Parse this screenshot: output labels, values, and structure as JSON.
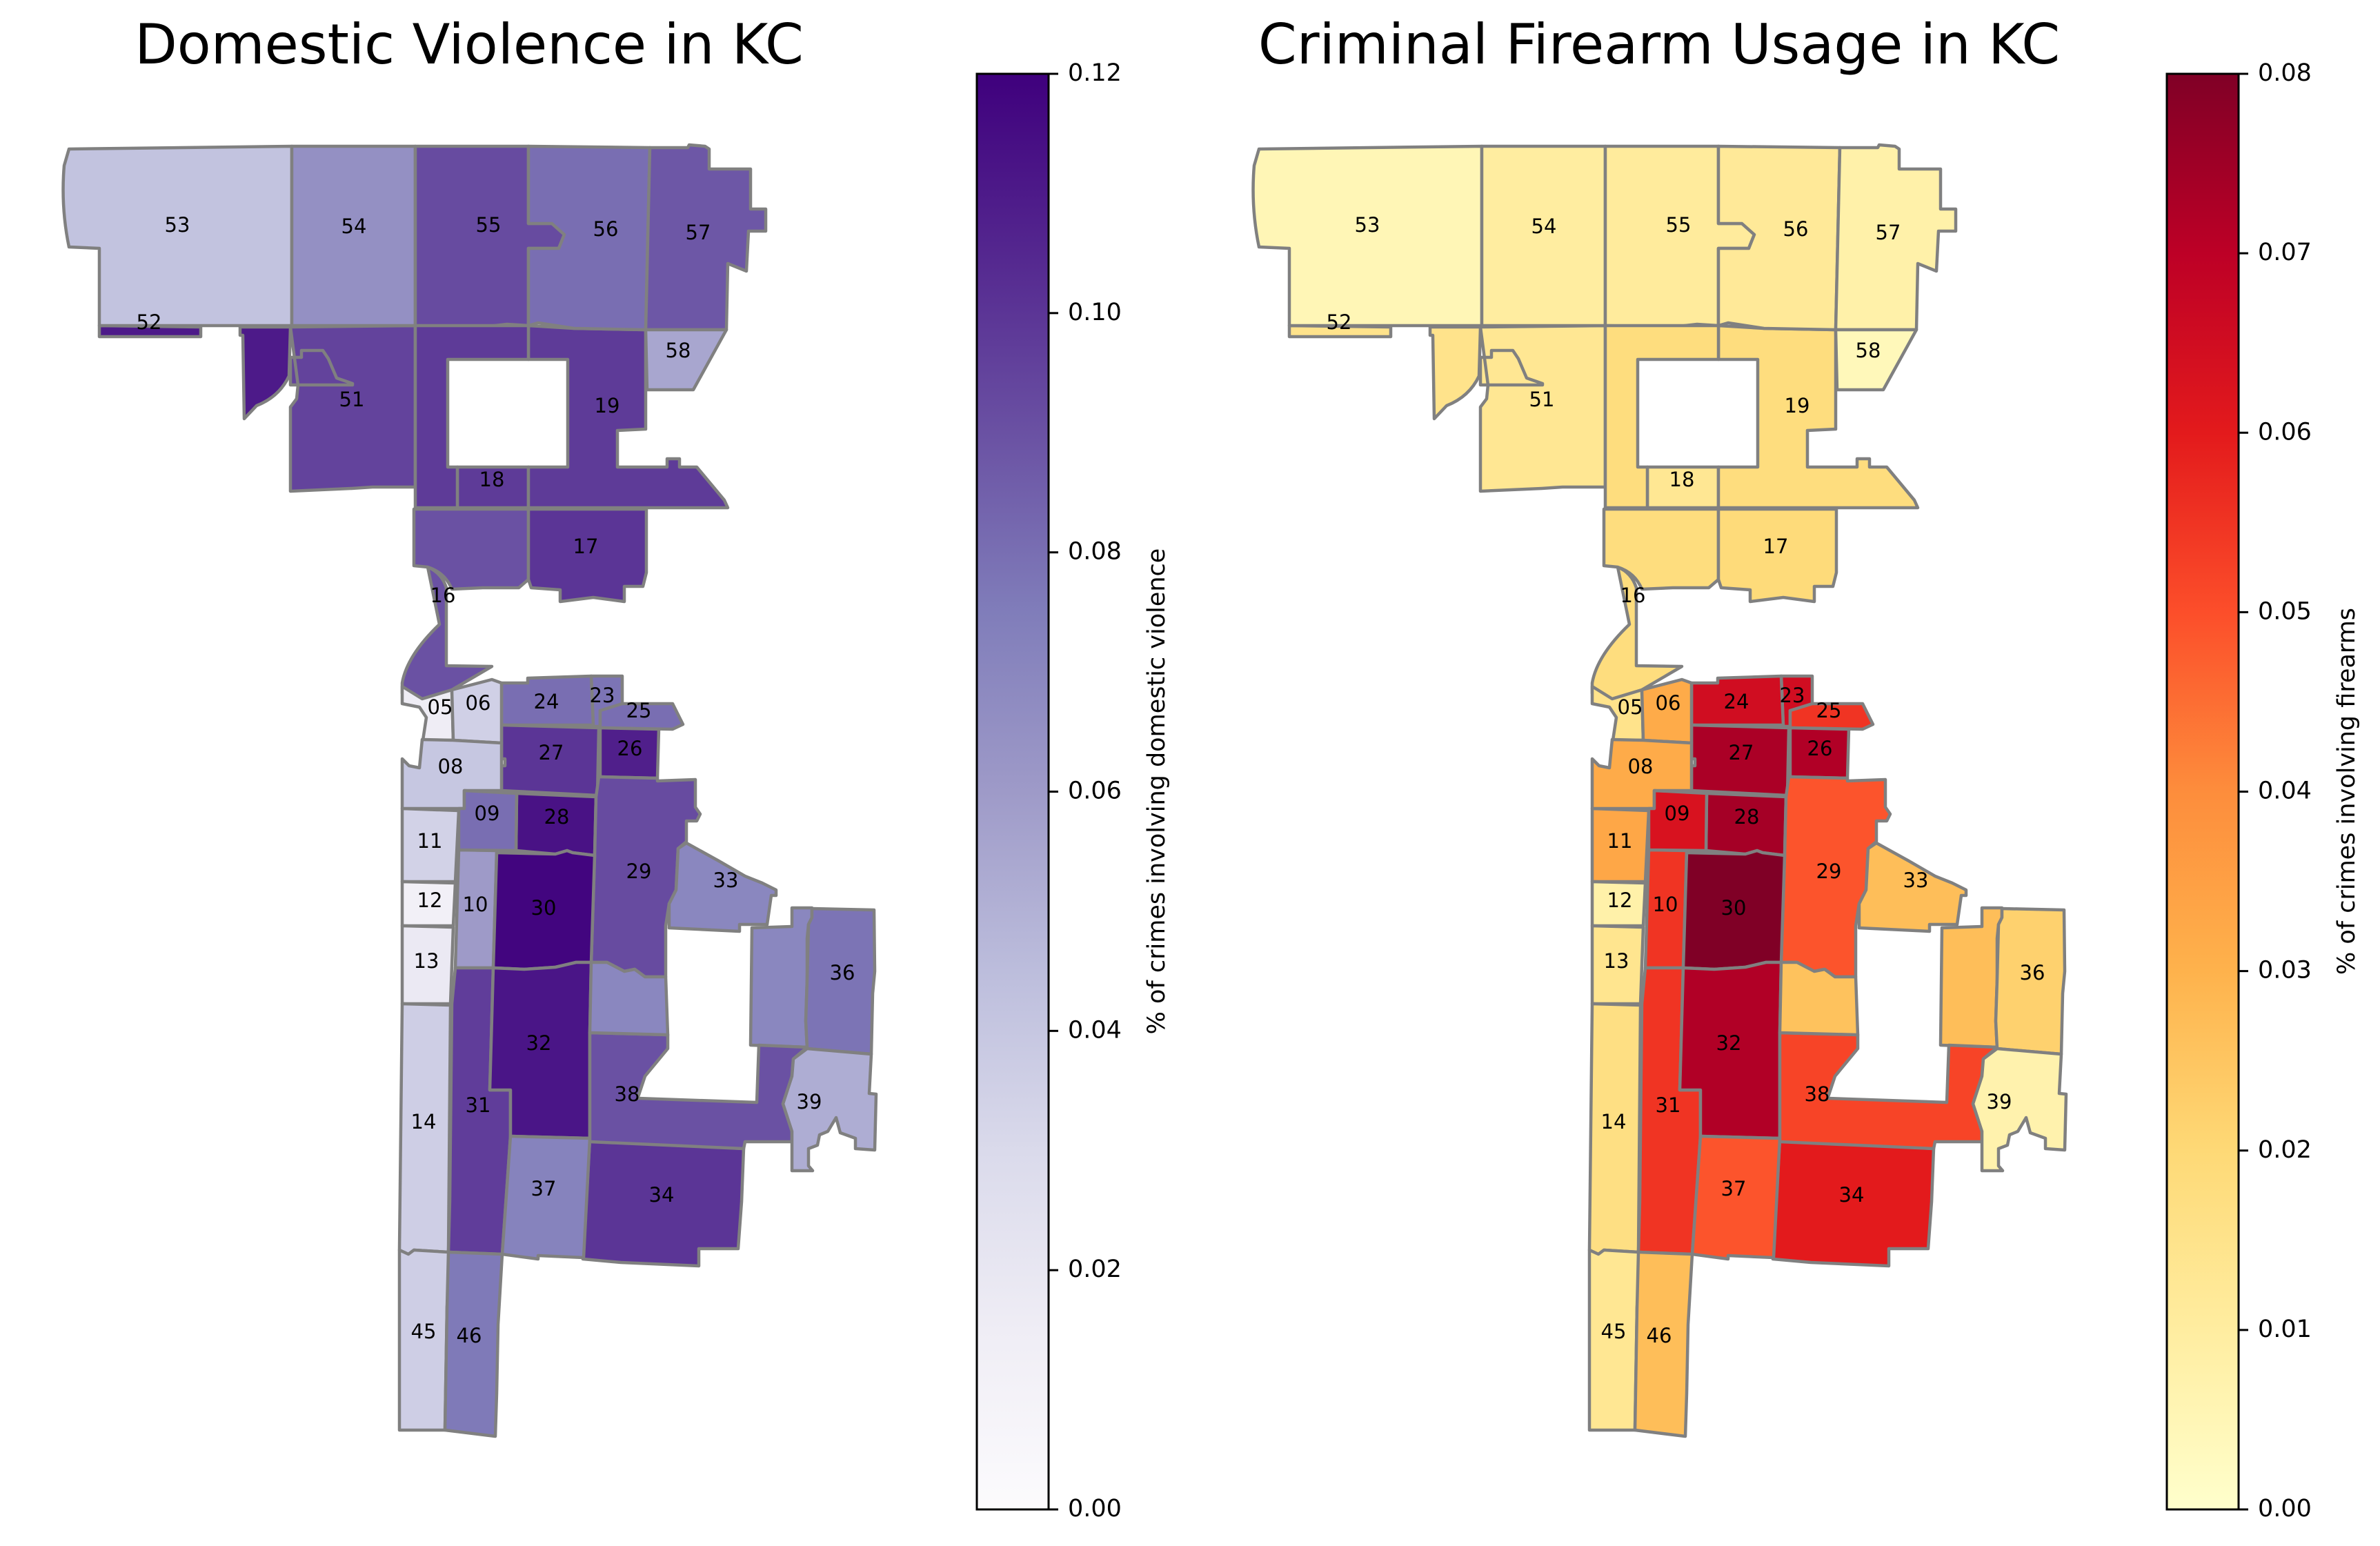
{
  "chart_data": [
    {
      "type": "choropleth",
      "title": "Domestic Violence in KC",
      "colormap": "Purples",
      "colorbar_label": "% of crimes involving domestic violence",
      "vmin": 0.0,
      "vmax": 0.12,
      "ticks": [
        "0.00",
        "0.02",
        "0.04",
        "0.06",
        "0.08",
        "0.10",
        "0.12"
      ],
      "colormap_stops": [
        "#fcfbfd",
        "#efedf5",
        "#dadaeb",
        "#bcbddc",
        "#9e9ac8",
        "#807dba",
        "#6a51a3",
        "#54278f",
        "#3f007d"
      ],
      "districts": {
        "53": 0.042,
        "54": 0.065,
        "55": 0.092,
        "56": 0.08,
        "57": 0.088,
        "52": 0.11,
        "52b": 0.11,
        "58": 0.055,
        "51": 0.095,
        "19": 0.098,
        "18": 0.098,
        "17": 0.1,
        "16": 0.09,
        "05": 0.015,
        "06": 0.035,
        "24": 0.08,
        "23": 0.078,
        "25": 0.08,
        "27": 0.1,
        "26": 0.108,
        "08": 0.04,
        "09": 0.08,
        "28": 0.113,
        "11": 0.034,
        "12": 0.012,
        "13": 0.018,
        "10": 0.06,
        "30": 0.118,
        "29": 0.092,
        "29b": 0.07,
        "33": 0.07,
        "35": 0.07,
        "36": 0.078,
        "39": 0.052,
        "38": 0.09,
        "32": 0.112,
        "31": 0.097,
        "14": 0.036,
        "37": 0.072,
        "34": 0.1,
        "45": 0.036,
        "46": 0.076
      }
    },
    {
      "type": "choropleth",
      "title": "Criminal Firearm Usage in KC",
      "colormap": "YlOrRd",
      "colorbar_label": "% of crimes involving firearms",
      "vmin": 0.0,
      "vmax": 0.08,
      "ticks": [
        "0.00",
        "0.01",
        "0.02",
        "0.03",
        "0.04",
        "0.05",
        "0.06",
        "0.07",
        "0.08"
      ],
      "colormap_stops": [
        "#ffffcc",
        "#ffeda0",
        "#fed976",
        "#feb24c",
        "#fd8d3c",
        "#fc4e2a",
        "#e31a1c",
        "#bd0026",
        "#800026"
      ],
      "districts": {
        "53": 0.005,
        "54": 0.01,
        "55": 0.011,
        "56": 0.012,
        "57": 0.008,
        "52": 0.015,
        "52b": 0.015,
        "58": 0.004,
        "51": 0.013,
        "19": 0.018,
        "18": 0.013,
        "17": 0.019,
        "16": 0.018,
        "05": 0.015,
        "06": 0.032,
        "24": 0.065,
        "23": 0.065,
        "25": 0.055,
        "27": 0.073,
        "26": 0.072,
        "08": 0.032,
        "09": 0.063,
        "28": 0.074,
        "11": 0.033,
        "12": 0.008,
        "13": 0.014,
        "10": 0.055,
        "30": 0.08,
        "29": 0.049,
        "29b": 0.026,
        "33": 0.027,
        "35": 0.027,
        "36": 0.022,
        "39": 0.007,
        "38": 0.052,
        "32": 0.072,
        "31": 0.055,
        "14": 0.017,
        "37": 0.049,
        "34": 0.06,
        "45": 0.013,
        "46": 0.027
      }
    }
  ],
  "labels": [
    "53",
    "54",
    "55",
    "56",
    "57",
    "52",
    "58",
    "51",
    "19",
    "18",
    "17",
    "16",
    "05",
    "06",
    "24",
    "23",
    "25",
    "27",
    "26",
    "08",
    "09",
    "28",
    "11",
    "29",
    "33",
    "12",
    "10",
    "30",
    "13",
    "36",
    "32",
    "38",
    "31",
    "39",
    "14",
    "37",
    "34",
    "45",
    "46"
  ],
  "border_color": "#808080"
}
